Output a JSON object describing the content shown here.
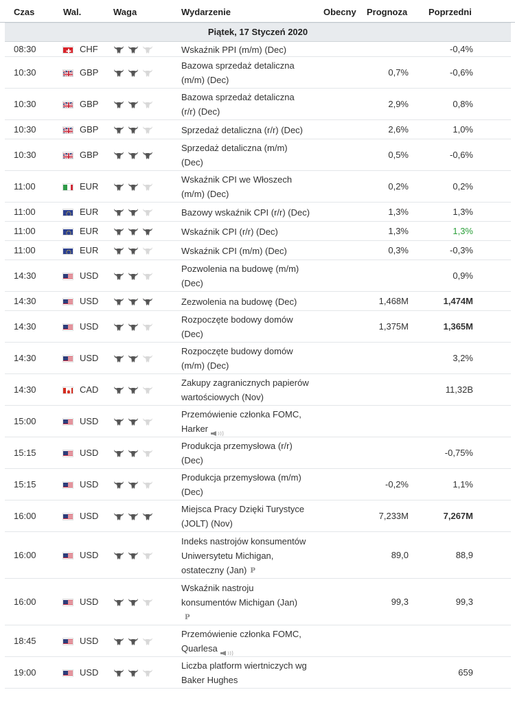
{
  "header": {
    "time": "Czas",
    "currency": "Wal.",
    "importance": "Waga",
    "event": "Wydarzenie",
    "actual": "Obecny",
    "forecast": "Prognoza",
    "previous": "Poprzedni"
  },
  "date": "Piątek, 17 Styczeń 2020",
  "rows": [
    {
      "time": "08:30",
      "flag": "ch",
      "currency": "CHF",
      "importance": 2,
      "event": [
        "Wskaźnik PPI (m/m) (Dec)"
      ],
      "icon": "",
      "actual": "",
      "forecast": "",
      "previous": "-0,4%",
      "previous_style": ""
    },
    {
      "time": "10:30",
      "flag": "gb",
      "currency": "GBP",
      "importance": 2,
      "event": [
        "Bazowa sprzedaż detaliczna",
        "(m/m) (Dec)"
      ],
      "icon": "",
      "actual": "",
      "forecast": "0,7%",
      "previous": "-0,6%",
      "previous_style": ""
    },
    {
      "time": "10:30",
      "flag": "gb",
      "currency": "GBP",
      "importance": 2,
      "event": [
        "Bazowa sprzedaż detaliczna",
        "(r/r) (Dec)"
      ],
      "icon": "",
      "actual": "",
      "forecast": "2,9%",
      "previous": "0,8%",
      "previous_style": ""
    },
    {
      "time": "10:30",
      "flag": "gb",
      "currency": "GBP",
      "importance": 2,
      "event": [
        "Sprzedaż detaliczna (r/r) (Dec)"
      ],
      "icon": "",
      "actual": "",
      "forecast": "2,6%",
      "previous": "1,0%",
      "previous_style": ""
    },
    {
      "time": "10:30",
      "flag": "gb",
      "currency": "GBP",
      "importance": 3,
      "event": [
        "Sprzedaż detaliczna (m/m)",
        "(Dec)"
      ],
      "icon": "",
      "actual": "",
      "forecast": "0,5%",
      "previous": "-0,6%",
      "previous_style": ""
    },
    {
      "time": "11:00",
      "flag": "it",
      "currency": "EUR",
      "importance": 2,
      "event": [
        "Wskaźnik CPI we Włoszech",
        "(m/m) (Dec)"
      ],
      "icon": "",
      "actual": "",
      "forecast": "0,2%",
      "previous": "0,2%",
      "previous_style": ""
    },
    {
      "time": "11:00",
      "flag": "eu",
      "currency": "EUR",
      "importance": 2,
      "event": [
        "Bazowy wskaźnik CPI (r/r) (Dec)"
      ],
      "icon": "",
      "actual": "",
      "forecast": "1,3%",
      "previous": "1,3%",
      "previous_style": ""
    },
    {
      "time": "11:00",
      "flag": "eu",
      "currency": "EUR",
      "importance": 3,
      "event": [
        "Wskaźnik CPI (r/r) (Dec)"
      ],
      "icon": "",
      "actual": "",
      "forecast": "1,3%",
      "previous": "1,3%",
      "previous_style": "green"
    },
    {
      "time": "11:00",
      "flag": "eu",
      "currency": "EUR",
      "importance": 2,
      "event": [
        "Wskaźnik CPI (m/m) (Dec)"
      ],
      "icon": "",
      "actual": "",
      "forecast": "0,3%",
      "previous": "-0,3%",
      "previous_style": ""
    },
    {
      "time": "14:30",
      "flag": "us",
      "currency": "USD",
      "importance": 2,
      "event": [
        "Pozwolenia na budowę (m/m)",
        "(Dec)"
      ],
      "icon": "",
      "actual": "",
      "forecast": "",
      "previous": "0,9%",
      "previous_style": ""
    },
    {
      "time": "14:30",
      "flag": "us",
      "currency": "USD",
      "importance": 3,
      "event": [
        "Zezwolenia na budowę (Dec)"
      ],
      "icon": "",
      "actual": "",
      "forecast": "1,468M",
      "previous": "1,474M",
      "previous_style": "bold"
    },
    {
      "time": "14:30",
      "flag": "us",
      "currency": "USD",
      "importance": 2,
      "event": [
        "Rozpoczęte bodowy domów",
        "(Dec)"
      ],
      "icon": "",
      "actual": "",
      "forecast": "1,375M",
      "previous": "1,365M",
      "previous_style": "bold"
    },
    {
      "time": "14:30",
      "flag": "us",
      "currency": "USD",
      "importance": 2,
      "event": [
        "Rozpoczęte budowy domów",
        "(m/m) (Dec)"
      ],
      "icon": "",
      "actual": "",
      "forecast": "",
      "previous": "3,2%",
      "previous_style": ""
    },
    {
      "time": "14:30",
      "flag": "ca",
      "currency": "CAD",
      "importance": 2,
      "event": [
        "Zakupy zagranicznych papierów",
        "wartościowych (Nov)"
      ],
      "icon": "",
      "actual": "",
      "forecast": "",
      "previous": "11,32B",
      "previous_style": ""
    },
    {
      "time": "15:00",
      "flag": "us",
      "currency": "USD",
      "importance": 2,
      "event": [
        "Przemówienie członka FOMC,",
        "Harker"
      ],
      "icon": "speaker",
      "actual": "",
      "forecast": "",
      "previous": "",
      "previous_style": ""
    },
    {
      "time": "15:15",
      "flag": "us",
      "currency": "USD",
      "importance": 2,
      "event": [
        "Produkcja przemysłowa (r/r)",
        "(Dec)"
      ],
      "icon": "",
      "actual": "",
      "forecast": "",
      "previous": "-0,75%",
      "previous_style": ""
    },
    {
      "time": "15:15",
      "flag": "us",
      "currency": "USD",
      "importance": 2,
      "event": [
        "Produkcja przemysłowa (m/m)",
        "(Dec)"
      ],
      "icon": "",
      "actual": "",
      "forecast": "-0,2%",
      "previous": "1,1%",
      "previous_style": ""
    },
    {
      "time": "16:00",
      "flag": "us",
      "currency": "USD",
      "importance": 3,
      "event": [
        "Miejsca Pracy Dzięki Turystyce",
        "(JOLT) (Nov)"
      ],
      "icon": "",
      "actual": "",
      "forecast": "7,233M",
      "previous": "7,267M",
      "previous_style": "bold"
    },
    {
      "time": "16:00",
      "flag": "us",
      "currency": "USD",
      "importance": 2,
      "event": [
        "Indeks nastrojów konsumentów",
        "Uniwersytetu Michigan,",
        "ostateczny (Jan)"
      ],
      "icon": "prelim",
      "actual": "",
      "forecast": "89,0",
      "previous": "88,9",
      "previous_style": ""
    },
    {
      "time": "16:00",
      "flag": "us",
      "currency": "USD",
      "importance": 2,
      "event": [
        "Wskaźnik nastroju",
        "konsumentów Michigan (Jan)",
        ""
      ],
      "icon": "prelim",
      "actual": "",
      "forecast": "99,3",
      "previous": "99,3",
      "previous_style": ""
    },
    {
      "time": "18:45",
      "flag": "us",
      "currency": "USD",
      "importance": 2,
      "event": [
        "Przemówienie członka FOMC,",
        "Quarlesa"
      ],
      "icon": "speaker",
      "actual": "",
      "forecast": "",
      "previous": "",
      "previous_style": ""
    },
    {
      "time": "19:00",
      "flag": "us",
      "currency": "USD",
      "importance": 2,
      "event": [
        "Liczba platform wiertniczych wg",
        "Baker Hughes"
      ],
      "icon": "",
      "actual": "",
      "forecast": "",
      "previous": "659",
      "previous_style": ""
    }
  ],
  "icons": {
    "importance": "bull-icon",
    "speech": "speaker-icon",
    "preliminary": "preliminary-p-icon"
  },
  "colors": {
    "accent_positive": "#2b9f3a",
    "bull_active": "#555555",
    "bull_inactive": "#d8d8d8"
  }
}
